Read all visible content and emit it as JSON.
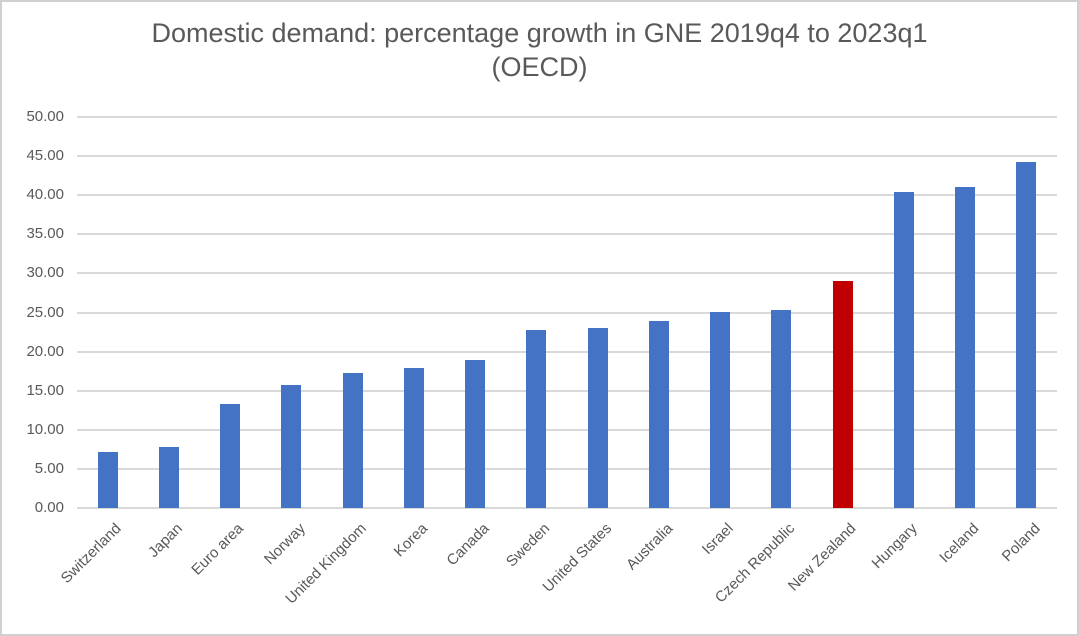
{
  "chart_data": {
    "type": "bar",
    "title": "Domestic demand: percentage growth in GNE 2019q4 to 2023q1",
    "subtitle": "(OECD)",
    "categories": [
      "Switzerland",
      "Japan",
      "Euro area",
      "Norway",
      "United Kingdom",
      "Korea",
      "Canada",
      "Sweden",
      "United States",
      "Australia",
      "Israel",
      "Czech Republic",
      "New Zealand",
      "Hungary",
      "Iceland",
      "Poland"
    ],
    "values": [
      7.2,
      7.8,
      13.3,
      15.7,
      17.3,
      17.9,
      18.9,
      22.7,
      23.0,
      23.9,
      25.1,
      25.3,
      29.0,
      40.4,
      41.1,
      44.2
    ],
    "highlight_category": "New Zealand",
    "highlight_index": 12,
    "xlabel": "",
    "ylabel": "",
    "ylim": [
      0,
      50
    ],
    "y_axis": {
      "min": 0,
      "max": 50,
      "step": 5,
      "tick_labels": [
        "0.00",
        "5.00",
        "10.00",
        "15.00",
        "20.00",
        "25.00",
        "30.00",
        "35.00",
        "40.00",
        "45.00",
        "50.00"
      ]
    },
    "grid": true,
    "legend": "none",
    "colors": {
      "bar_default": "#4472C4",
      "bar_highlight": "#C00000",
      "gridline": "#D9D9D9",
      "text": "#595959",
      "frame_border": "#D0D0D0"
    }
  }
}
